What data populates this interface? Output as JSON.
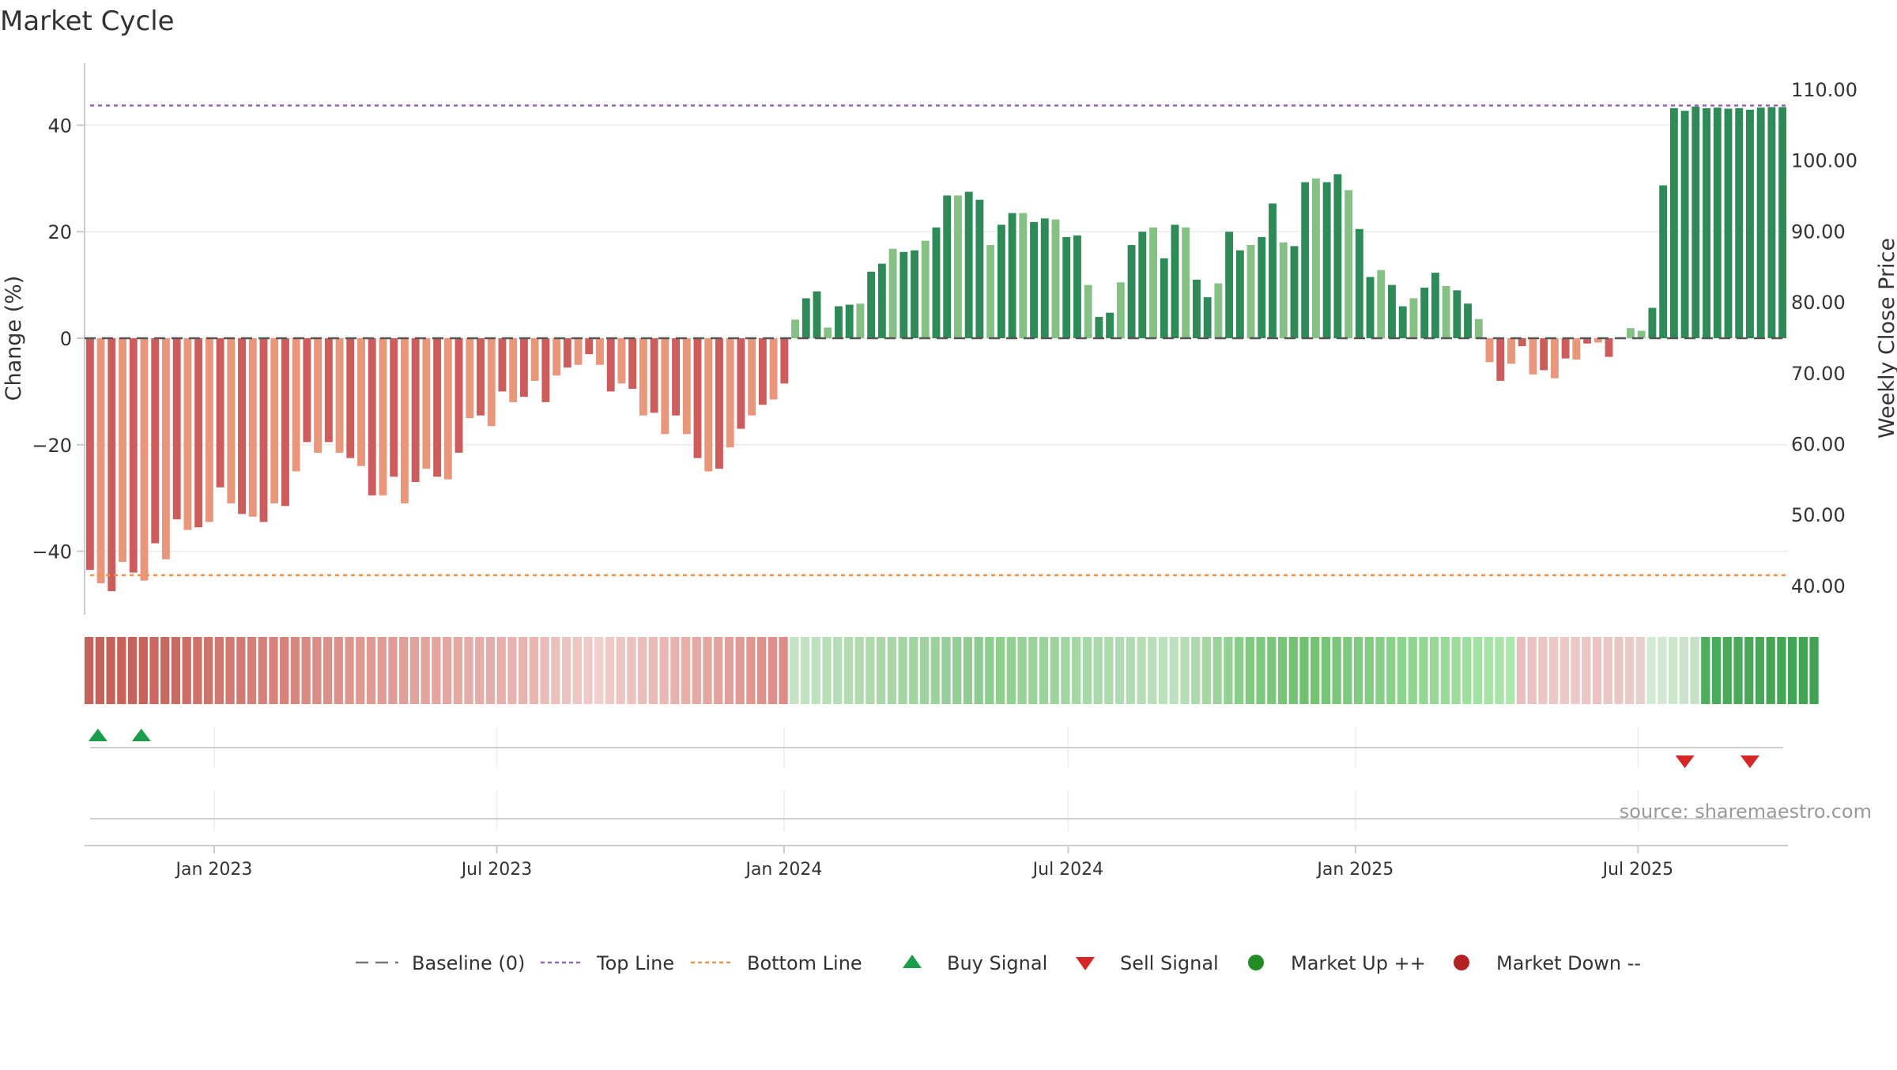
{
  "chart_data": {
    "type": "bar",
    "title": "Market Cycle",
    "ylabel": "Change (%)",
    "y2label": "Weekly Close Price",
    "ylim": [
      -52,
      52
    ],
    "y2lim": [
      33.9,
      112.2
    ],
    "yticks": [
      40,
      20,
      0,
      -20,
      -40
    ],
    "ytick_labels": [
      "40",
      "20",
      "0",
      "−20",
      "−40"
    ],
    "y2ticks": [
      110,
      100,
      90,
      80,
      70,
      60,
      50,
      40
    ],
    "y2tick_labels": [
      "110.00",
      "100.00",
      "90.00",
      "80.00",
      "70.00",
      "60.00",
      "50.00",
      "40.00"
    ],
    "xlim": [
      "2022-10-10",
      "2025-10-05"
    ],
    "xticks": [
      "2023-01-01",
      "2023-07-01",
      "2024-01-01",
      "2024-07-01",
      "2025-01-01",
      "2025-07-01"
    ],
    "xtick_labels": [
      "Jan 2023",
      "Jul 2023",
      "Jan 2024",
      "Jul 2024",
      "Jan 2025",
      "Jul 2025"
    ],
    "start_week": "2022-10-10",
    "top_line": 43.7,
    "bottom_line": -44.5,
    "values": [
      -43.5,
      -46,
      -47.5,
      -42,
      -44,
      -45.5,
      -38.5,
      -41.5,
      -34,
      -36,
      -35.5,
      -34.5,
      -28,
      -31,
      -33,
      -33.5,
      -34.5,
      -31,
      -31.5,
      -25,
      -19.5,
      -21.5,
      -19.5,
      -21.5,
      -22.5,
      -24,
      -29.5,
      -29.5,
      -26,
      -31,
      -27,
      -24.5,
      -26,
      -26.5,
      -21.5,
      -15,
      -14.5,
      -16.5,
      -10,
      -12,
      -11,
      -8,
      -12,
      -7,
      -5.5,
      -5,
      -3,
      -5,
      -10,
      -8.5,
      -9.5,
      -14.5,
      -14,
      -18,
      -14.5,
      -18,
      -22.5,
      -25,
      -24.5,
      -20.5,
      -17,
      -14.5,
      -12.5,
      -11.5,
      -8.5,
      3.5,
      7.5,
      8.8,
      2,
      6,
      6.3,
      6.5,
      12.5,
      14,
      16.8,
      16.2,
      16.5,
      18.3,
      20.8,
      26.8,
      26.8,
      27.5,
      26,
      17.5,
      21.3,
      23.5,
      23.5,
      21.8,
      22.5,
      22.3,
      19,
      19.3,
      10,
      4,
      4.8,
      10.5,
      17.5,
      20,
      20.8,
      15,
      21.3,
      20.8,
      11,
      7.7,
      10.3,
      20,
      16.5,
      17.5,
      19,
      25.3,
      18,
      17.3,
      29.3,
      30,
      29.3,
      30.8,
      27.8,
      20.5,
      11.5,
      12.8,
      10,
      6,
      7.5,
      9.5,
      12.3,
      9.8,
      9,
      6.5,
      3.6,
      -4.5,
      -8,
      -4.8,
      -1.5,
      -6.8,
      -6,
      -7.5,
      -3.8,
      -4,
      -1,
      -0.8,
      -3.5,
      0.2,
      1.9,
      1.4,
      5.7,
      28.7,
      43.2,
      42.7,
      43.5,
      43.2,
      43.3,
      43.1,
      43.2,
      42.9,
      43.3,
      43.4,
      43.4
    ],
    "bar_colors": {
      "up_strong": "#2e8b57",
      "up_light": "#85c085",
      "down_strong": "#cd5c5c",
      "down_light": "#e9967a"
    },
    "band_colors": [
      "#c46159",
      "#c46159",
      "#c46159",
      "#c6645c",
      "#c6645c",
      "#c6645c",
      "#c96960",
      "#c96960",
      "#ca6b62",
      "#cc6e66",
      "#cd7169",
      "#ce746c",
      "#d0776f",
      "#d17a72",
      "#d17a72",
      "#d37e76",
      "#d48079",
      "#d6837c",
      "#d6837c",
      "#d8877f",
      "#d98a83",
      "#da8d86",
      "#db9089",
      "#dc928b",
      "#dd958e",
      "#de9791",
      "#df9a94",
      "#df9b95",
      "#e09d97",
      "#e19f99",
      "#e1a19c",
      "#e2a39e",
      "#e3a5a0",
      "#e3a7a2",
      "#e4a9a4",
      "#e5aba6",
      "#e5aca8",
      "#e6aeaa",
      "#e7b0ac",
      "#e8b2ae",
      "#e8b4b0",
      "#e9b6b2",
      "#eabbb7",
      "#ebbfbb",
      "#ecc3bf",
      "#edc6c3",
      "#eecac7",
      "#efcecb",
      "#eecac7",
      "#edc6c3",
      "#ecc2be",
      "#ebbeba",
      "#eabab6",
      "#e9b6b2",
      "#e8b2ae",
      "#e7aeaa",
      "#e6aaa6",
      "#e5a6a2",
      "#e4a29e",
      "#e39e9a",
      "#e29a96",
      "#e19692",
      "#e0928e",
      "#df8e8a",
      "#de8a86",
      "#c2e4c2",
      "#bfe2bf",
      "#bce1bc",
      "#b9dfb9",
      "#b6deb6",
      "#b3dcb3",
      "#b0dbb0",
      "#addaad",
      "#aad8aa",
      "#a7d7a7",
      "#a4d5a4",
      "#a1d4a1",
      "#9ed29e",
      "#9bd19b",
      "#98cf98",
      "#95ce95",
      "#92cc92",
      "#8fcb8f",
      "#8ccf8c",
      "#8fd08f",
      "#92d192",
      "#95d295",
      "#98d398",
      "#9bd49b",
      "#9ed59e",
      "#a1d6a1",
      "#a4d7a4",
      "#a7d8a7",
      "#aad9aa",
      "#addaad",
      "#b0dbb0",
      "#b3dcb3",
      "#b6ddb6",
      "#b9deb9",
      "#bcdfbc",
      "#bfe0bf",
      "#b6ddb6",
      "#addaad",
      "#a4d7a4",
      "#9bd49b",
      "#92d192",
      "#89ce89",
      "#80cb80",
      "#7dc97d",
      "#7ac77a",
      "#77c577",
      "#74c374",
      "#71c171",
      "#74c374",
      "#77c577",
      "#7ac77a",
      "#7dc97d",
      "#80cb80",
      "#83cd83",
      "#86cf86",
      "#89d189",
      "#8cd38c",
      "#8fd58f",
      "#92d792",
      "#95d995",
      "#98db98",
      "#9bdd9b",
      "#9edf9e",
      "#a1e1a1",
      "#a4e3a4",
      "#a7e5a7",
      "#aae7aa",
      "#e8bfbd",
      "#e9c2c0",
      "#eac5c3",
      "#ebc8c6",
      "#ecc8c6",
      "#ecc8c6",
      "#ebc5c3",
      "#eac2c0",
      "#e9c5c3",
      "#e8c8c6",
      "#e7cbc9",
      "#e6cecc",
      "#d2ead2",
      "#cfe8cf",
      "#cce6cc",
      "#c9e4c9",
      "#c6e2c6",
      "#4cae5c",
      "#4aac5a",
      "#49ab59",
      "#48aa58",
      "#47a957",
      "#46a856",
      "#45a755",
      "#44a654",
      "#43a553",
      "#42a452",
      "#41a351"
    ],
    "buy_signals": [
      0,
      4
    ],
    "sell_signals": [
      147,
      153
    ],
    "source": "source: sharemaestro.com",
    "legend": [
      {
        "label": "Baseline (0)",
        "marker": "dashed-line",
        "color": "#777777"
      },
      {
        "label": "Top Line",
        "marker": "dotted-line",
        "color": "#9467bd"
      },
      {
        "label": "Bottom Line",
        "marker": "dotted-line",
        "color": "#f0904a"
      },
      {
        "label": "Buy Signal",
        "marker": "triangle-up",
        "color": "#1a9e4a"
      },
      {
        "label": "Sell Signal",
        "marker": "triangle-down",
        "color": "#d62728"
      },
      {
        "label": "Market Up ++",
        "marker": "circle",
        "color": "#228b22"
      },
      {
        "label": "Market Down --",
        "marker": "circle",
        "color": "#b22222"
      }
    ],
    "grid": true,
    "legend_position": "bottom-center"
  }
}
